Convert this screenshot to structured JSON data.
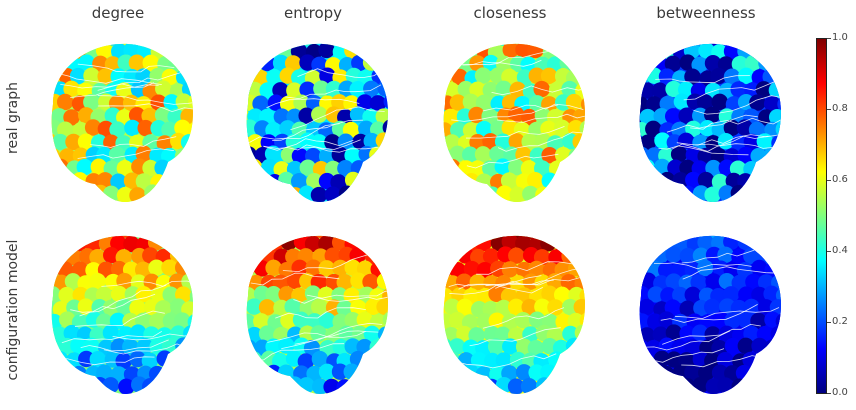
{
  "columns": [
    "degree",
    "entropy",
    "closeness",
    "betweenness"
  ],
  "rows": [
    "real graph",
    "configuration model"
  ],
  "colormap": "jet",
  "colorbar": {
    "min": 0.0,
    "max": 1.0,
    "ticks": [
      "0.0",
      "0.2",
      "0.4",
      "0.6",
      "0.8",
      "1.0"
    ],
    "colors": [
      "#00007f",
      "#0000ff",
      "#007fff",
      "#00ffff",
      "#7fff7f",
      "#ffff00",
      "#ff7f00",
      "#ff0000",
      "#7f0000"
    ]
  },
  "panels": [
    {
      "row": "real graph",
      "column": "degree",
      "mean_level": 0.55,
      "spread": 0.25
    },
    {
      "row": "real graph",
      "column": "entropy",
      "mean_level": 0.35,
      "spread": 0.35
    },
    {
      "row": "real graph",
      "column": "closeness",
      "mean_level": 0.58,
      "spread": 0.22
    },
    {
      "row": "real graph",
      "column": "betweenness",
      "mean_level": 0.18,
      "spread": 0.25
    },
    {
      "row": "configuration model",
      "column": "degree",
      "mean_level": 0.5,
      "spread": 0.2
    },
    {
      "row": "configuration model",
      "column": "entropy",
      "mean_level": 0.55,
      "spread": 0.3
    },
    {
      "row": "configuration model",
      "column": "closeness",
      "mean_level": 0.6,
      "spread": 0.18
    },
    {
      "row": "configuration model",
      "column": "betweenness",
      "mean_level": 0.12,
      "spread": 0.15
    }
  ]
}
